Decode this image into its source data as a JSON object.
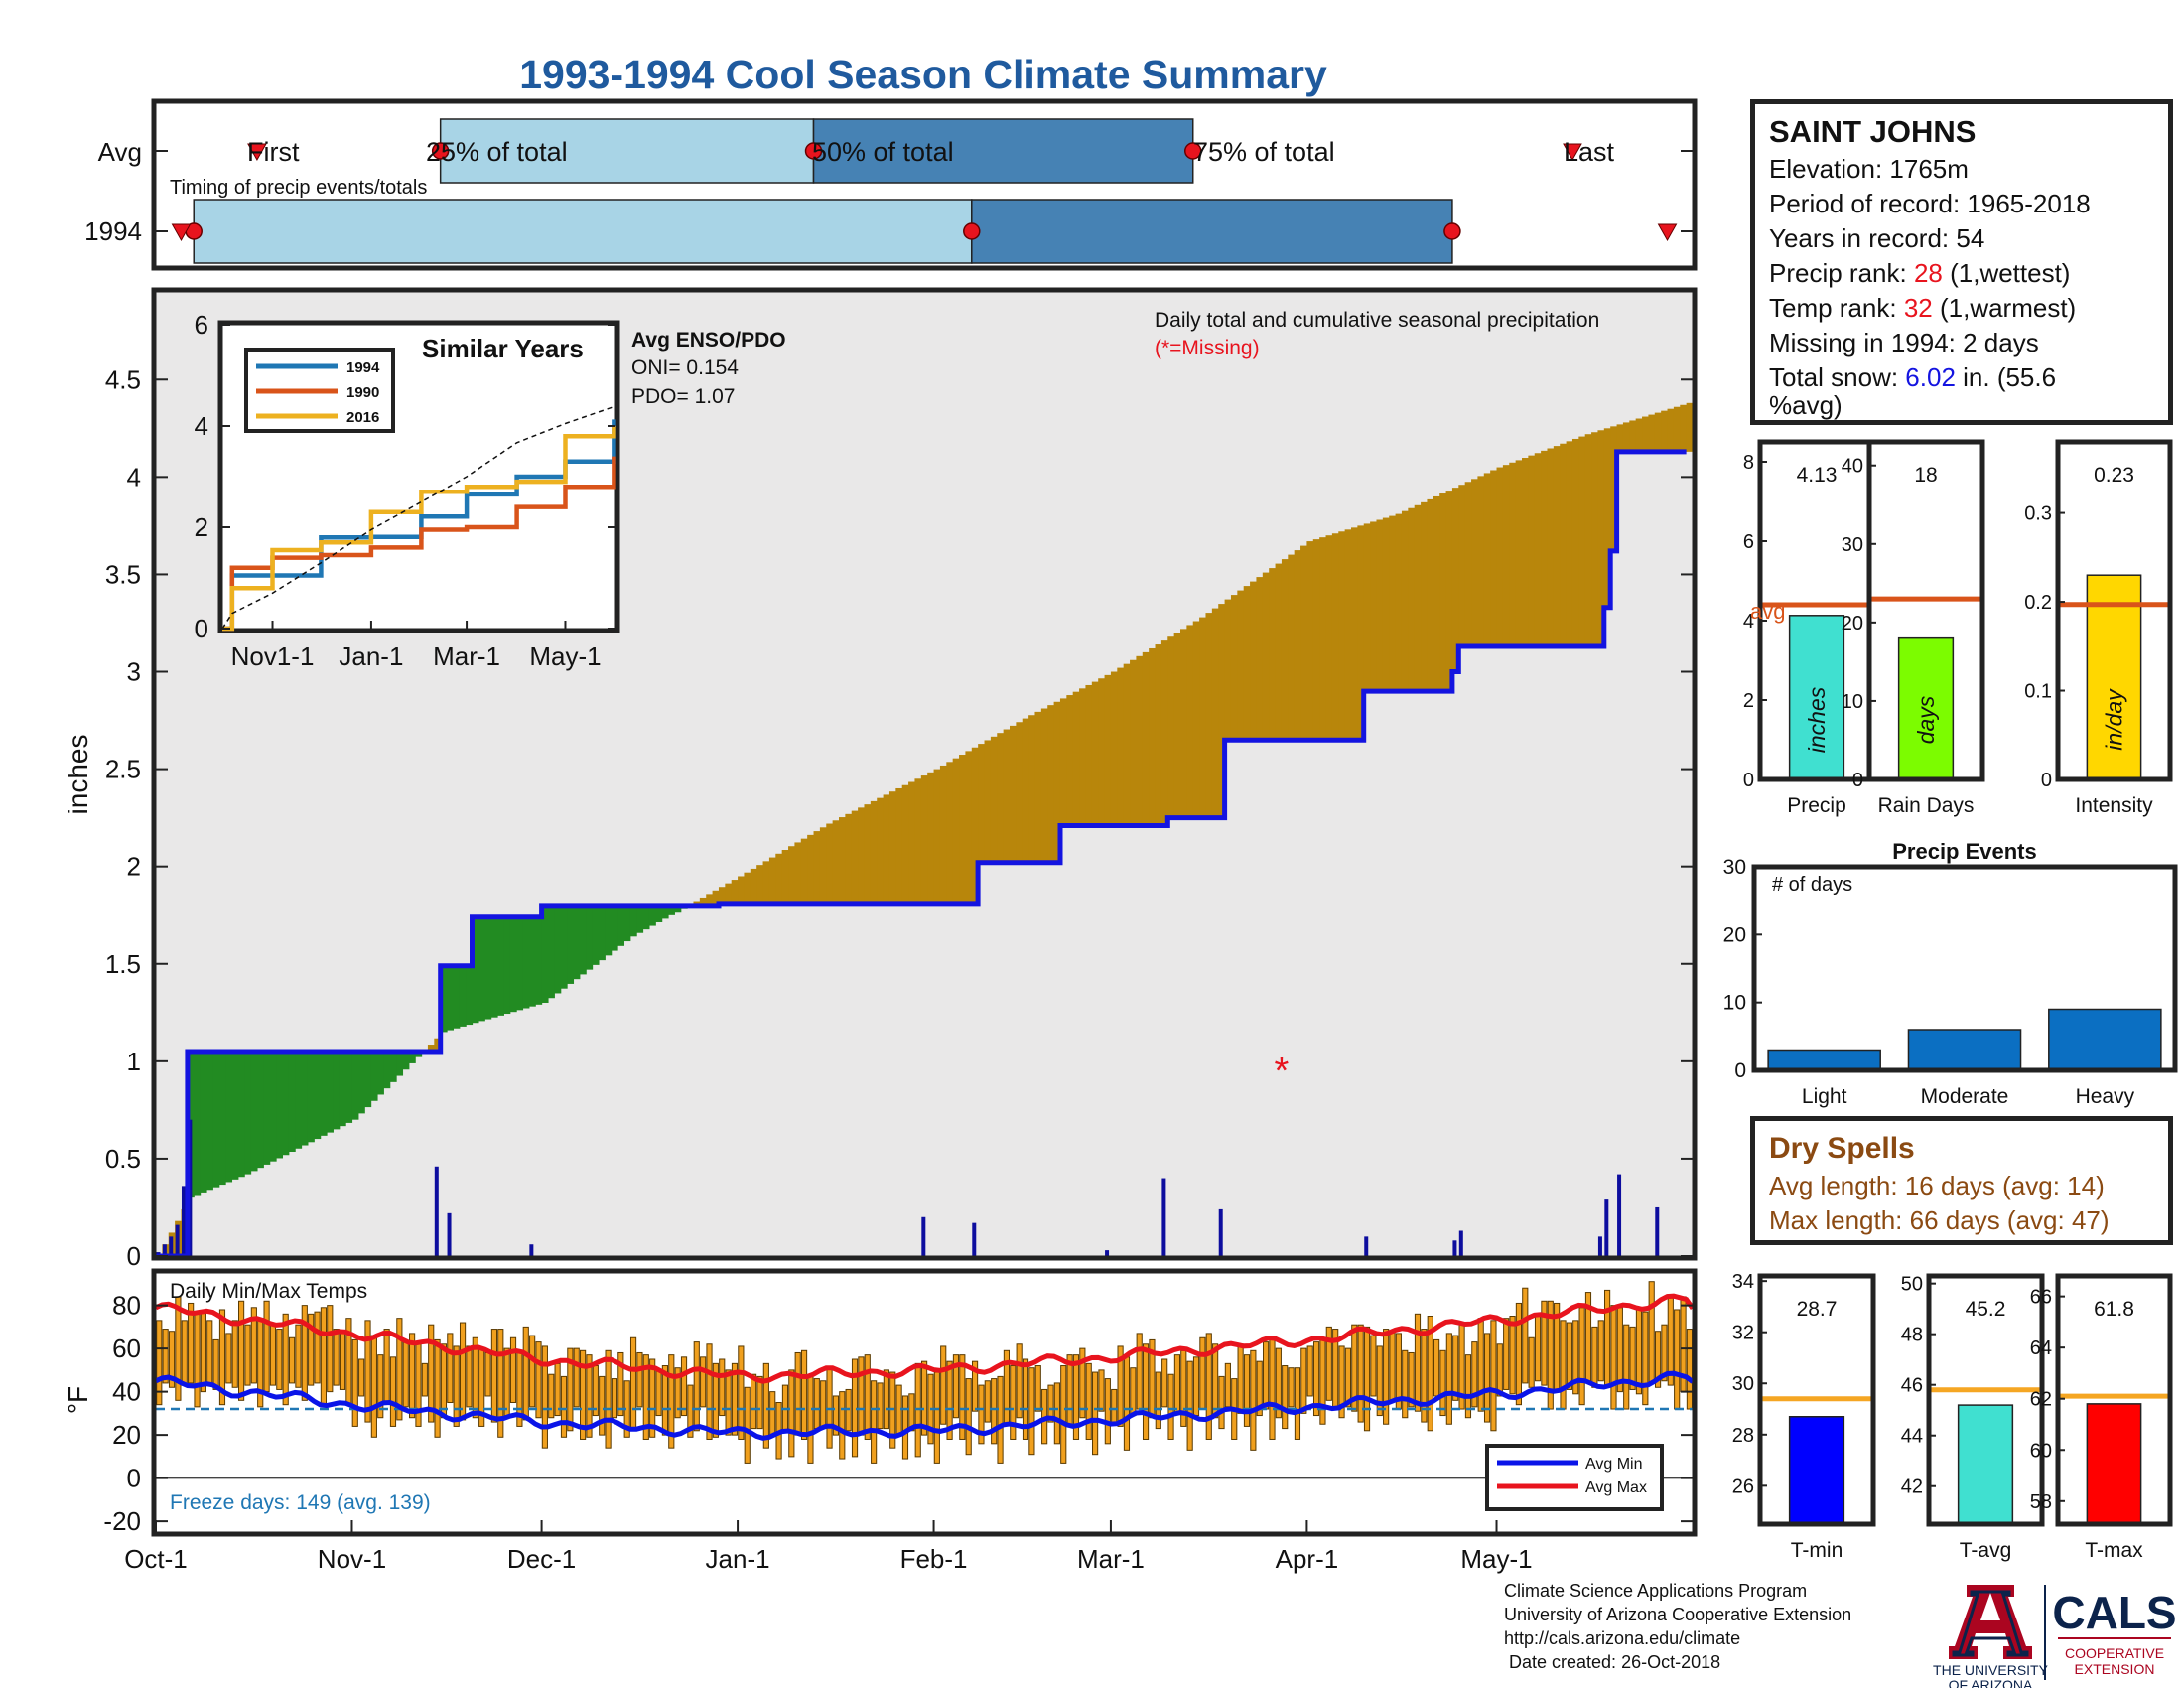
{
  "title": "1993-1994 Cool Season Climate Summary",
  "timing": {
    "caption": "Timing of precip events/totals",
    "rows": [
      "Avg",
      "1994"
    ],
    "labels": {
      "first": "First",
      "p25": "25% of total",
      "p50": "50% of total",
      "p75": "75% of total",
      "last": "Last"
    },
    "avg": {
      "first": "1993-10-17",
      "p25": "1993-11-15",
      "p50": "1994-01-13",
      "p75": "1994-03-14",
      "last": "1994-05-13"
    },
    "year": {
      "first": "1993-10-05",
      "p25": "1993-10-07",
      "p50": "1994-02-07",
      "p75": "1994-04-24",
      "last": "1994-05-28"
    }
  },
  "station": {
    "name": "SAINT JOHNS",
    "elevation_label": "Elevation: 1765m",
    "period_label": "Period of record: 1965-2018",
    "years_label": "Years in record: 54",
    "precip_rank_prefix": "Precip rank: ",
    "precip_rank_value": "28",
    "precip_rank_suffix": " (1,wettest)",
    "temp_rank_prefix": "Temp rank: ",
    "temp_rank_value": "32",
    "temp_rank_suffix": " (1,warmest)",
    "missing_label": "Missing in 1994: 2 days",
    "snow_prefix": "Total snow: ",
    "snow_value": "6.02",
    "snow_suffix": " in. (55.6",
    "snow_suffix2": "%avg)"
  },
  "main_annotation": {
    "line1": "Daily total and cumulative seasonal precipitation",
    "line2": "(*=Missing)"
  },
  "enso": {
    "title": "Avg ENSO/PDO",
    "oni": "ONI= 0.154",
    "pdo": "PDO= 1.07"
  },
  "similar_years": {
    "title": "Similar Years",
    "series": [
      {
        "name": "1994",
        "color": "#1f77b4"
      },
      {
        "name": "1990",
        "color": "#d9541a"
      },
      {
        "name": "2016",
        "color": "#edb120"
      }
    ]
  },
  "temps": {
    "label": "Daily Min/Max Temps",
    "freeze_text": "Freeze days: 149 (avg. 139)",
    "legend": [
      "Avg Min",
      "Avg Max"
    ]
  },
  "precip_bars": [
    {
      "label": "Precip",
      "value": 4.13,
      "value_label": "4.13",
      "avg": 4.4,
      "unit": "inches",
      "color": "#40e0d0",
      "ylim": [
        0,
        8.5
      ],
      "ticks": [
        0,
        2,
        4,
        6,
        8
      ],
      "avg_text": "avg"
    },
    {
      "label": "Rain Days",
      "value": 18,
      "value_label": "18",
      "avg": 23,
      "unit": "days",
      "color": "#7cfc00",
      "ylim": [
        0,
        43
      ],
      "ticks": [
        0,
        10,
        20,
        30,
        40
      ]
    },
    {
      "label": "Intensity",
      "value": 0.23,
      "value_label": "0.23",
      "avg": 0.197,
      "unit": "in/day",
      "color": "#ffd700",
      "ylim": [
        0,
        0.38
      ],
      "ticks": [
        0,
        0.1,
        0.2,
        0.3
      ]
    }
  ],
  "precip_events": {
    "title": "Precip Events",
    "ylabel_inside": "# of days",
    "categories": [
      "Light",
      "Moderate",
      "Heavy"
    ],
    "values": [
      3,
      6,
      9
    ],
    "ylim": [
      0,
      30
    ],
    "ticks": [
      0,
      10,
      20,
      30
    ]
  },
  "dry_spells": {
    "title": "Dry Spells",
    "avg_line": "Avg length: 16 days (avg: 14)",
    "max_line": "Max length: 66 days (avg: 47)"
  },
  "temp_bars": [
    {
      "label": "T-min",
      "value": 28.7,
      "value_label": "28.7",
      "avg": 29.4,
      "color": "#0000ff",
      "ylim": [
        24.5,
        34.2
      ],
      "ticks": [
        26,
        28,
        30,
        32,
        34
      ]
    },
    {
      "label": "T-avg",
      "value": 45.2,
      "value_label": "45.2",
      "avg": 45.8,
      "color": "#40e0d0",
      "ylim": [
        40.5,
        50.3
      ],
      "ticks": [
        42,
        44,
        46,
        48,
        50
      ]
    },
    {
      "label": "T-max",
      "value": 61.8,
      "value_label": "61.8",
      "avg": 62.1,
      "color": "#ff0000",
      "ylim": [
        57.1,
        66.8
      ],
      "ticks": [
        58,
        60,
        62,
        64,
        66
      ]
    }
  ],
  "footer": {
    "line1": "Climate Science Applications Program",
    "line2": "University of Arizona Cooperative Extension",
    "line3": "http://cals.arizona.edu/climate",
    "line4": " Date created: 26-Oct-2018"
  },
  "logos": {
    "ua_line1": "THE UNIVERSITY",
    "ua_line2": "OF ARIZONA",
    "cals": "CALS",
    "cals_line1": "COOPERATIVE",
    "cals_line2": "EXTENSION",
    "ua_color": "#ab0520",
    "ua_blue": "#0c234b"
  },
  "chart_data": [
    {
      "type": "area",
      "title": "Daily total and cumulative seasonal precipitation",
      "ylabel": "inches",
      "x_ticks": [
        "Oct-1",
        "Nov-1",
        "Dec-1",
        "Jan-1",
        "Feb-1",
        "Mar-1",
        "Apr-1",
        "May-1"
      ],
      "xlim": [
        "1993-10-01",
        "1994-05-31"
      ],
      "ylim": [
        0,
        4.95
      ],
      "y_ticks": [
        0,
        0.5,
        1,
        1.5,
        2,
        2.5,
        3,
        3.5,
        4,
        4.5
      ],
      "missing_marker": {
        "x": "1994-03-28",
        "y": 1.0,
        "label": "*"
      },
      "series": [
        {
          "name": "1994 cumulative",
          "color": "#1414e0",
          "x": [
            "1993-10-01",
            "1993-10-06",
            "1993-11-14",
            "1993-11-15",
            "1993-11-20",
            "1993-12-01",
            "1993-12-29",
            "1994-01-29",
            "1994-02-08",
            "1994-02-21",
            "1994-03-10",
            "1994-03-19",
            "1994-04-10",
            "1994-04-24",
            "1994-04-25",
            "1994-05-18",
            "1994-05-19",
            "1994-05-20",
            "1994-05-31"
          ],
          "y": [
            0.0,
            1.05,
            1.05,
            1.49,
            1.74,
            1.8,
            1.81,
            1.81,
            2.02,
            2.21,
            2.25,
            2.65,
            2.9,
            3.0,
            3.13,
            3.33,
            3.62,
            4.13,
            4.13
          ]
        },
        {
          "name": "Avg cumulative",
          "color": "#111111",
          "x": [
            "1993-10-01",
            "1993-10-06",
            "1993-10-15",
            "1993-11-01",
            "1993-11-15",
            "1993-12-01",
            "1993-12-15",
            "1994-01-01",
            "1994-01-15",
            "1994-02-01",
            "1994-02-15",
            "1994-03-01",
            "1994-03-15",
            "1994-04-01",
            "1994-04-15",
            "1994-05-01",
            "1994-05-15",
            "1994-05-31"
          ],
          "y": [
            0.0,
            0.3,
            0.42,
            0.7,
            1.15,
            1.3,
            1.64,
            1.95,
            2.22,
            2.5,
            2.76,
            3.0,
            3.28,
            3.67,
            3.81,
            4.05,
            4.22,
            4.38
          ]
        }
      ],
      "daily_precip": {
        "x": [
          "1993-10-01",
          "1993-10-02",
          "1993-10-03",
          "1993-10-04",
          "1993-10-05",
          "1993-10-06",
          "1993-11-14",
          "1993-11-16",
          "1993-11-29",
          "1994-01-30",
          "1994-02-07",
          "1994-02-28",
          "1994-03-09",
          "1994-03-18",
          "1994-04-10",
          "1994-04-24",
          "1994-04-25",
          "1994-05-17",
          "1994-05-18",
          "1994-05-20",
          "1994-05-26"
        ],
        "y": [
          0.02,
          0.06,
          0.1,
          0.16,
          0.36,
          0.7,
          0.46,
          0.22,
          0.06,
          0.2,
          0.17,
          0.03,
          0.4,
          0.24,
          0.1,
          0.08,
          0.13,
          0.1,
          0.29,
          0.42,
          0.25
        ]
      }
    },
    {
      "type": "line",
      "title": "Similar Years",
      "x_ticks": [
        "Nov1-1",
        "Jan-1",
        "Mar-1",
        "May-1"
      ],
      "ylim": [
        0,
        6
      ],
      "y_ticks": [
        0,
        2,
        4,
        6
      ],
      "x": [
        "1993-10-01",
        "1993-10-07",
        "1993-11-01",
        "1993-12-01",
        "1994-01-01",
        "1994-02-01",
        "1994-03-01",
        "1994-04-01",
        "1994-05-01",
        "1994-05-31"
      ],
      "series": [
        {
          "name": "1994",
          "y": [
            0.0,
            1.05,
            1.05,
            1.8,
            1.81,
            2.21,
            2.65,
            3.0,
            3.3,
            4.13
          ]
        },
        {
          "name": "1990",
          "y": [
            0.0,
            1.2,
            1.4,
            1.45,
            1.6,
            1.95,
            2.0,
            2.4,
            2.8,
            3.4
          ]
        },
        {
          "name": "2016",
          "y": [
            0.0,
            0.8,
            1.55,
            1.7,
            2.3,
            2.7,
            2.8,
            2.9,
            3.8,
            4.0
          ]
        },
        {
          "name": "avg",
          "y": [
            0.0,
            0.3,
            0.7,
            1.3,
            1.95,
            2.5,
            3.0,
            3.67,
            4.05,
            4.38
          ]
        }
      ]
    },
    {
      "type": "bar",
      "title": "Daily Min/Max Temps",
      "ylabel": "°F",
      "ylim": [
        -25,
        95
      ],
      "y_ticks": [
        -20,
        0,
        20,
        40,
        60,
        80
      ],
      "freeze_line": 32,
      "avg_min": {
        "x": [
          "1993-10-01",
          "1993-11-01",
          "1993-12-01",
          "1994-01-01",
          "1994-02-01",
          "1994-03-01",
          "1994-04-01",
          "1994-05-01",
          "1994-05-31"
        ],
        "y": [
          45,
          34,
          26,
          21,
          22,
          27,
          33,
          39,
          47
        ]
      },
      "avg_max": {
        "x": [
          "1993-10-01",
          "1993-11-01",
          "1993-12-01",
          "1994-01-01",
          "1994-02-01",
          "1994-03-01",
          "1994-04-01",
          "1994-05-01",
          "1994-05-31"
        ],
        "y": [
          79,
          67,
          55,
          47,
          50,
          56,
          64,
          73,
          83
        ]
      },
      "daily_min_by_month": [
        [
          36,
          44,
          40,
          37,
          42,
          46,
          33,
          38,
          44,
          40
        ],
        [
          30,
          24,
          36,
          27,
          18,
          30,
          35,
          22,
          28,
          32
        ],
        [
          22,
          14,
          26,
          30,
          18,
          24,
          33,
          16,
          20,
          28
        ],
        [
          12,
          20,
          16,
          8,
          22,
          25,
          14,
          18,
          10,
          21
        ],
        [
          18,
          26,
          14,
          8,
          24,
          20,
          28,
          16,
          12,
          30
        ],
        [
          20,
          30,
          22,
          14,
          28,
          34,
          18,
          26,
          24,
          32
        ],
        [
          28,
          22,
          36,
          30,
          24,
          38,
          32,
          26,
          34,
          30
        ],
        [
          34,
          40,
          30,
          42,
          38,
          36,
          44,
          40,
          46,
          42
        ]
      ],
      "daily_max_by_month": [
        [
          82,
          76,
          80,
          74,
          68,
          72,
          78,
          70,
          66,
          76
        ],
        [
          70,
          64,
          58,
          66,
          62,
          72,
          60,
          56,
          64,
          68
        ],
        [
          56,
          50,
          60,
          46,
          58,
          54,
          62,
          48,
          52,
          58
        ],
        [
          44,
          52,
          40,
          46,
          56,
          38,
          48,
          60,
          42,
          50
        ],
        [
          50,
          44,
          56,
          58,
          42,
          48,
          54,
          46,
          52,
          60
        ],
        [
          56,
          48,
          62,
          54,
          60,
          50,
          66,
          58,
          52,
          64
        ],
        [
          62,
          70,
          58,
          66,
          72,
          60,
          68,
          64,
          74,
          70
        ],
        [
          72,
          80,
          68,
          76,
          82,
          74,
          78,
          70,
          84,
          88
        ]
      ]
    }
  ]
}
